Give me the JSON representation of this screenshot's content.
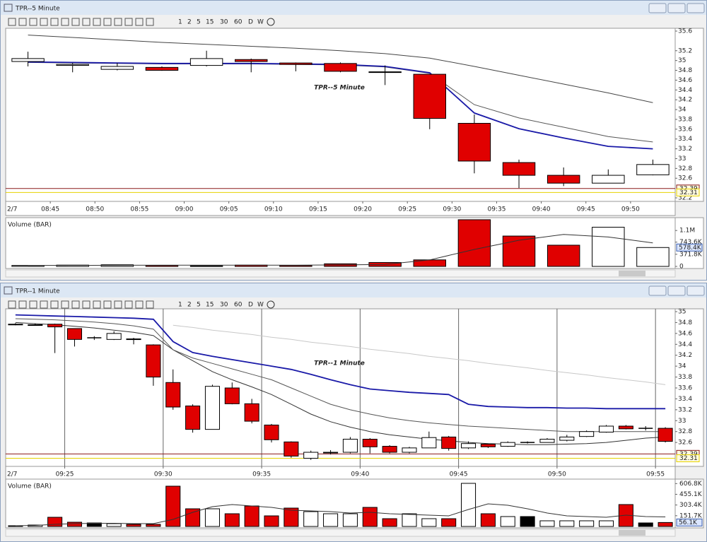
{
  "windows": [
    {
      "title": "TPR--5 Minute",
      "timeframes": [
        "1",
        "2",
        "5",
        "15",
        "30",
        "60",
        "D",
        "W"
      ],
      "price": {
        "watermark": "TPR--5 Minute",
        "date_label": "2/7",
        "grid": false,
        "xlim": [
          520,
          595
        ],
        "ylim": [
          32.2,
          35.6
        ],
        "xticks": [
          {
            "value": 525,
            "label": "08:45"
          },
          {
            "value": 530,
            "label": "08:50"
          },
          {
            "value": 535,
            "label": "08:55"
          },
          {
            "value": 540,
            "label": "09:00"
          },
          {
            "value": 545,
            "label": "09:05"
          },
          {
            "value": 550,
            "label": "09:10"
          },
          {
            "value": 555,
            "label": "09:15"
          },
          {
            "value": 560,
            "label": "09:20"
          },
          {
            "value": 565,
            "label": "09:25"
          },
          {
            "value": 570,
            "label": "09:30"
          },
          {
            "value": 575,
            "label": "09:35"
          },
          {
            "value": 580,
            "label": "09:40"
          },
          {
            "value": 585,
            "label": "09:45"
          },
          {
            "value": 590,
            "label": "09:50"
          }
        ],
        "yticks": [
          35.6,
          35.2,
          35,
          34.8,
          34.6,
          34.4,
          34.2,
          34,
          33.8,
          33.6,
          33.4,
          33.2,
          33,
          32.8,
          32.6,
          32.2
        ],
        "x": [
          520,
          525,
          530,
          535,
          540,
          545,
          550,
          555,
          560,
          565,
          570,
          575,
          580,
          585,
          590
        ],
        "open": [
          34.98,
          34.9,
          34.82,
          34.86,
          34.9,
          35.02,
          34.95,
          34.94,
          34.77,
          34.72,
          33.72,
          32.92,
          32.66,
          32.5,
          32.67
        ],
        "high": [
          35.18,
          34.95,
          34.95,
          34.88,
          35.2,
          35.04,
          34.96,
          34.96,
          34.9,
          34.72,
          33.9,
          32.98,
          32.82,
          32.78,
          32.98
        ],
        "low": [
          34.88,
          34.76,
          34.8,
          34.79,
          34.88,
          34.76,
          34.78,
          34.76,
          34.5,
          33.6,
          32.7,
          32.4,
          32.44,
          32.5,
          32.66
        ],
        "close": [
          35.04,
          34.92,
          34.88,
          34.8,
          35.04,
          34.98,
          34.92,
          34.78,
          34.76,
          33.82,
          32.95,
          32.66,
          32.5,
          32.66,
          32.88
        ],
        "lines": [
          {
            "color": "#444444",
            "values": [
              35.52,
              35.47,
              35.42,
              35.37,
              35.33,
              35.29,
              35.25,
              35.2,
              35.14,
              35.05,
              34.88,
              34.7,
              34.52,
              34.34,
              34.14
            ]
          },
          {
            "color": "#555555",
            "values": [
              34.96,
              34.95,
              34.94,
              34.93,
              34.93,
              34.93,
              34.92,
              34.91,
              34.87,
              34.74,
              34.1,
              33.83,
              33.64,
              33.45,
              33.34
            ]
          },
          {
            "color": "#1a1aa8",
            "values": [
              34.97,
              34.96,
              34.95,
              34.94,
              34.94,
              34.94,
              34.93,
              34.92,
              34.88,
              34.75,
              33.93,
              33.61,
              33.42,
              33.25,
              33.2
            ]
          }
        ],
        "markers": [
          {
            "value": 32.39,
            "color": "#8b1a1a"
          },
          {
            "value": 32.31,
            "color": "#e6d200"
          }
        ]
      },
      "volume": {
        "label": "Volume (BAR)",
        "ylim": [
          0,
          1450000
        ],
        "yticks": [
          {
            "value": 1100000,
            "label": "1.1M"
          },
          {
            "value": 743600,
            "label": "743.6K"
          },
          {
            "value": 371800,
            "label": "371.8K"
          },
          0
        ],
        "values": [
          30000,
          40000,
          50000,
          30000,
          20000,
          40000,
          30000,
          80000,
          120000,
          200000,
          1430000,
          930000,
          650000,
          1200000,
          578400
        ],
        "average": [
          30000,
          32000,
          35000,
          37000,
          36000,
          37000,
          36000,
          45000,
          60000,
          200000,
          520000,
          800000,
          980000,
          900000,
          720000
        ],
        "marker": {
          "value": 578400,
          "label": "578.4K"
        }
      }
    },
    {
      "title": "TPR--1 Minute",
      "timeframes": [
        "1",
        "2",
        "5",
        "15",
        "30",
        "60",
        "D",
        "W"
      ],
      "price": {
        "watermark": "TPR--1 Minute",
        "date_label": "2/7",
        "grid": true,
        "xlim": [
          562,
          596
        ],
        "ylim": [
          32.2,
          35
        ],
        "xticks": [
          {
            "value": 565,
            "label": "09:25"
          },
          {
            "value": 570,
            "label": "09:30"
          },
          {
            "value": 575,
            "label": "09:35"
          },
          {
            "value": 580,
            "label": "09:40"
          },
          {
            "value": 585,
            "label": "09:45"
          },
          {
            "value": 590,
            "label": "09:50"
          },
          {
            "value": 595,
            "label": "09:55"
          }
        ],
        "yticks": [
          35,
          34.8,
          34.6,
          34.4,
          34.2,
          34,
          33.8,
          33.6,
          33.4,
          33.2,
          33,
          32.8,
          32.6
        ],
        "x": [
          562,
          563,
          564,
          565,
          566,
          567,
          568,
          569,
          570,
          571,
          572,
          573,
          574,
          575,
          576,
          577,
          578,
          579,
          580,
          581,
          582,
          583,
          584,
          585,
          586,
          587,
          588,
          589,
          590,
          591,
          592,
          593,
          594,
          595
        ],
        "open": [
          34.76,
          34.75,
          34.77,
          34.69,
          34.52,
          34.49,
          34.5,
          34.39,
          33.7,
          33.27,
          32.84,
          33.6,
          33.31,
          32.92,
          32.61,
          32.31,
          32.41,
          32.42,
          32.66,
          32.53,
          32.42,
          32.5,
          32.7,
          32.5,
          32.57,
          32.53,
          32.6,
          32.6,
          32.64,
          32.71,
          32.79,
          32.9,
          32.86,
          32.86
        ],
        "high": [
          34.79,
          34.78,
          34.78,
          34.69,
          34.55,
          34.64,
          34.52,
          34.4,
          33.94,
          33.3,
          33.66,
          33.7,
          33.4,
          32.94,
          32.62,
          32.45,
          32.46,
          32.7,
          32.68,
          32.55,
          32.52,
          32.8,
          32.72,
          32.62,
          32.58,
          32.62,
          32.62,
          32.68,
          32.74,
          32.82,
          32.92,
          32.92,
          32.9,
          32.88
        ],
        "low": [
          34.75,
          34.74,
          34.24,
          34.36,
          34.48,
          34.48,
          34.4,
          33.64,
          33.2,
          32.78,
          32.84,
          33.3,
          32.95,
          32.6,
          32.32,
          32.28,
          32.38,
          32.4,
          32.4,
          32.4,
          32.4,
          32.5,
          32.45,
          32.48,
          32.5,
          32.52,
          32.58,
          32.6,
          32.62,
          32.7,
          32.78,
          32.84,
          32.82,
          32.6
        ],
        "close": [
          34.77,
          34.76,
          34.72,
          34.49,
          34.52,
          34.6,
          34.49,
          33.8,
          33.25,
          32.84,
          33.63,
          33.31,
          32.99,
          32.65,
          32.35,
          32.42,
          32.42,
          32.66,
          32.52,
          32.42,
          32.5,
          32.69,
          32.49,
          32.58,
          32.52,
          32.6,
          32.6,
          32.66,
          32.7,
          32.8,
          32.9,
          32.85,
          32.86,
          32.62
        ],
        "lines": [
          {
            "color": "#c8c8c8",
            "values": [
              null,
              null,
              null,
              null,
              null,
              null,
              null,
              null,
              34.75,
              34.71,
              34.66,
              34.62,
              34.58,
              34.53,
              34.49,
              34.44,
              34.4,
              34.36,
              34.31,
              34.27,
              34.23,
              34.18,
              34.14,
              34.1,
              34.05,
              34.01,
              33.97,
              33.92,
              33.88,
              33.84,
              33.79,
              33.75,
              33.71,
              33.66
            ]
          },
          {
            "color": "#333333",
            "values": [
              34.8,
              34.78,
              34.76,
              34.73,
              34.7,
              34.66,
              34.62,
              34.56,
              34.3,
              34.1,
              33.9,
              33.75,
              33.62,
              33.48,
              33.3,
              33.12,
              32.98,
              32.88,
              32.8,
              32.74,
              32.7,
              32.66,
              32.63,
              32.6,
              32.58,
              32.57,
              32.56,
              32.56,
              32.57,
              32.58,
              32.6,
              32.64,
              32.68,
              32.7
            ]
          },
          {
            "color": "#555555",
            "values": [
              34.87,
              34.86,
              34.85,
              34.83,
              34.81,
              34.78,
              34.74,
              34.68,
              34.3,
              34.15,
              34.05,
              33.95,
              33.85,
              33.75,
              33.6,
              33.45,
              33.3,
              33.2,
              33.12,
              33.05,
              33.0,
              32.96,
              32.93,
              32.9,
              32.88,
              32.86,
              32.84,
              32.82,
              32.8,
              32.8,
              32.8,
              32.8,
              32.8,
              32.8
            ]
          },
          {
            "color": "#1a1aa8",
            "values": [
              34.94,
              34.93,
              34.92,
              34.91,
              34.9,
              34.89,
              34.88,
              34.86,
              34.45,
              34.25,
              34.18,
              34.12,
              34.06,
              34.0,
              33.94,
              33.85,
              33.75,
              33.66,
              33.58,
              33.55,
              33.52,
              33.5,
              33.48,
              33.3,
              33.26,
              33.25,
              33.24,
              33.24,
              33.23,
              33.23,
              33.22,
              33.22,
              33.22,
              33.22
            ]
          }
        ],
        "markers": [
          {
            "value": 32.39,
            "color": "#8b1a1a"
          },
          {
            "value": 32.31,
            "color": "#e6d200"
          }
        ]
      },
      "volume": {
        "label": "Volume (BAR)",
        "ylim": [
          0,
          650000
        ],
        "yticks": [
          {
            "value": 606800,
            "label": "606.8K"
          },
          {
            "value": 455100,
            "label": "455.1K"
          },
          {
            "value": 303400,
            "label": "303.4K"
          },
          {
            "value": 151700,
            "label": "151.7K"
          }
        ],
        "values": [
          10000,
          20000,
          130000,
          60000,
          50000,
          40000,
          30000,
          30000,
          570000,
          250000,
          250000,
          180000,
          290000,
          150000,
          260000,
          210000,
          180000,
          180000,
          270000,
          110000,
          180000,
          110000,
          110000,
          610000,
          180000,
          140000,
          140000,
          80000,
          80000,
          80000,
          80000,
          310000,
          50000,
          56100
        ],
        "average": [
          10000,
          15000,
          30000,
          40000,
          45000,
          45000,
          40000,
          40000,
          100000,
          200000,
          280000,
          310000,
          290000,
          270000,
          230000,
          220000,
          210000,
          190000,
          200000,
          180000,
          170000,
          160000,
          150000,
          240000,
          320000,
          300000,
          250000,
          190000,
          150000,
          140000,
          130000,
          160000,
          140000,
          135000
        ],
        "marker": {
          "value": 56100,
          "label": "56.1K"
        }
      }
    }
  ]
}
